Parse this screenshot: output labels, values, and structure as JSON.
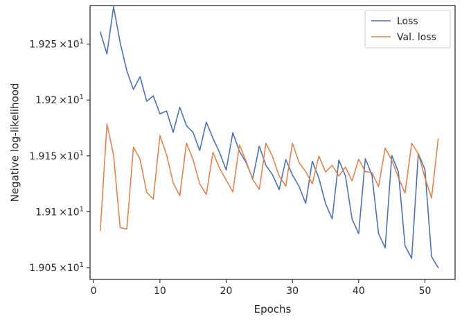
{
  "chart_data": {
    "type": "line",
    "xlabel": "Epochs",
    "ylabel": "Negative log-likelihood",
    "xlim": [
      -0.55,
      54.55
    ],
    "ylim": [
      19.0395,
      19.2845
    ],
    "x_ticks": [
      0,
      10,
      20,
      30,
      40,
      50
    ],
    "y_ticks": [
      {
        "value": 19.05,
        "mantissa": "1.905",
        "exponent": "1"
      },
      {
        "value": 19.1,
        "mantissa": "1.91",
        "exponent": "1"
      },
      {
        "value": 19.15,
        "mantissa": "1.915",
        "exponent": "1"
      },
      {
        "value": 19.2,
        "mantissa": "1.92",
        "exponent": "1"
      },
      {
        "value": 19.25,
        "mantissa": "1.925",
        "exponent": "1"
      }
    ],
    "y_tick_format": "×10",
    "legend_position": "top-right",
    "grid": false,
    "x": [
      1,
      2,
      3,
      4,
      5,
      6,
      7,
      8,
      9,
      10,
      11,
      12,
      13,
      14,
      15,
      16,
      17,
      18,
      19,
      20,
      21,
      22,
      23,
      24,
      25,
      26,
      27,
      28,
      29,
      30,
      31,
      32,
      33,
      34,
      35,
      36,
      37,
      38,
      39,
      40,
      41,
      42,
      43,
      44,
      45,
      46,
      47,
      48,
      49,
      50,
      51,
      52
    ],
    "series": [
      {
        "name": "Loss",
        "color": "#4c72b0",
        "values": [
          19.2608,
          19.2413,
          19.2835,
          19.2511,
          19.2262,
          19.2094,
          19.2209,
          19.1989,
          19.2037,
          19.1876,
          19.1902,
          19.1711,
          19.1935,
          19.177,
          19.171,
          19.1549,
          19.1802,
          19.1658,
          19.153,
          19.1374,
          19.1707,
          19.1541,
          19.1441,
          19.1297,
          19.1587,
          19.1415,
          19.1331,
          19.1198,
          19.1467,
          19.1329,
          19.1227,
          19.1076,
          19.1453,
          19.1299,
          19.1073,
          19.0937,
          19.1462,
          19.1322,
          19.0935,
          19.0804,
          19.1475,
          19.1329,
          19.0804,
          19.0678,
          19.1503,
          19.1355,
          19.0695,
          19.0583,
          19.1521,
          19.138,
          19.0599,
          19.05
        ]
      },
      {
        "name": "Val. loss",
        "color": "#dd8452",
        "values": [
          19.0832,
          19.1785,
          19.1509,
          19.0857,
          19.0846,
          19.1579,
          19.147,
          19.1173,
          19.1113,
          19.1682,
          19.151,
          19.1259,
          19.1144,
          19.1614,
          19.1467,
          19.125,
          19.1155,
          19.1531,
          19.139,
          19.1284,
          19.1178,
          19.1597,
          19.1453,
          19.129,
          19.12,
          19.1613,
          19.1493,
          19.1319,
          19.1229,
          19.1614,
          19.1441,
          19.1359,
          19.125,
          19.1499,
          19.1356,
          19.1416,
          19.132,
          19.14,
          19.1276,
          19.1471,
          19.1359,
          19.1352,
          19.1225,
          19.157,
          19.1461,
          19.1305,
          19.1167,
          19.1613,
          19.1519,
          19.1307,
          19.1123,
          19.1652
        ]
      }
    ]
  }
}
